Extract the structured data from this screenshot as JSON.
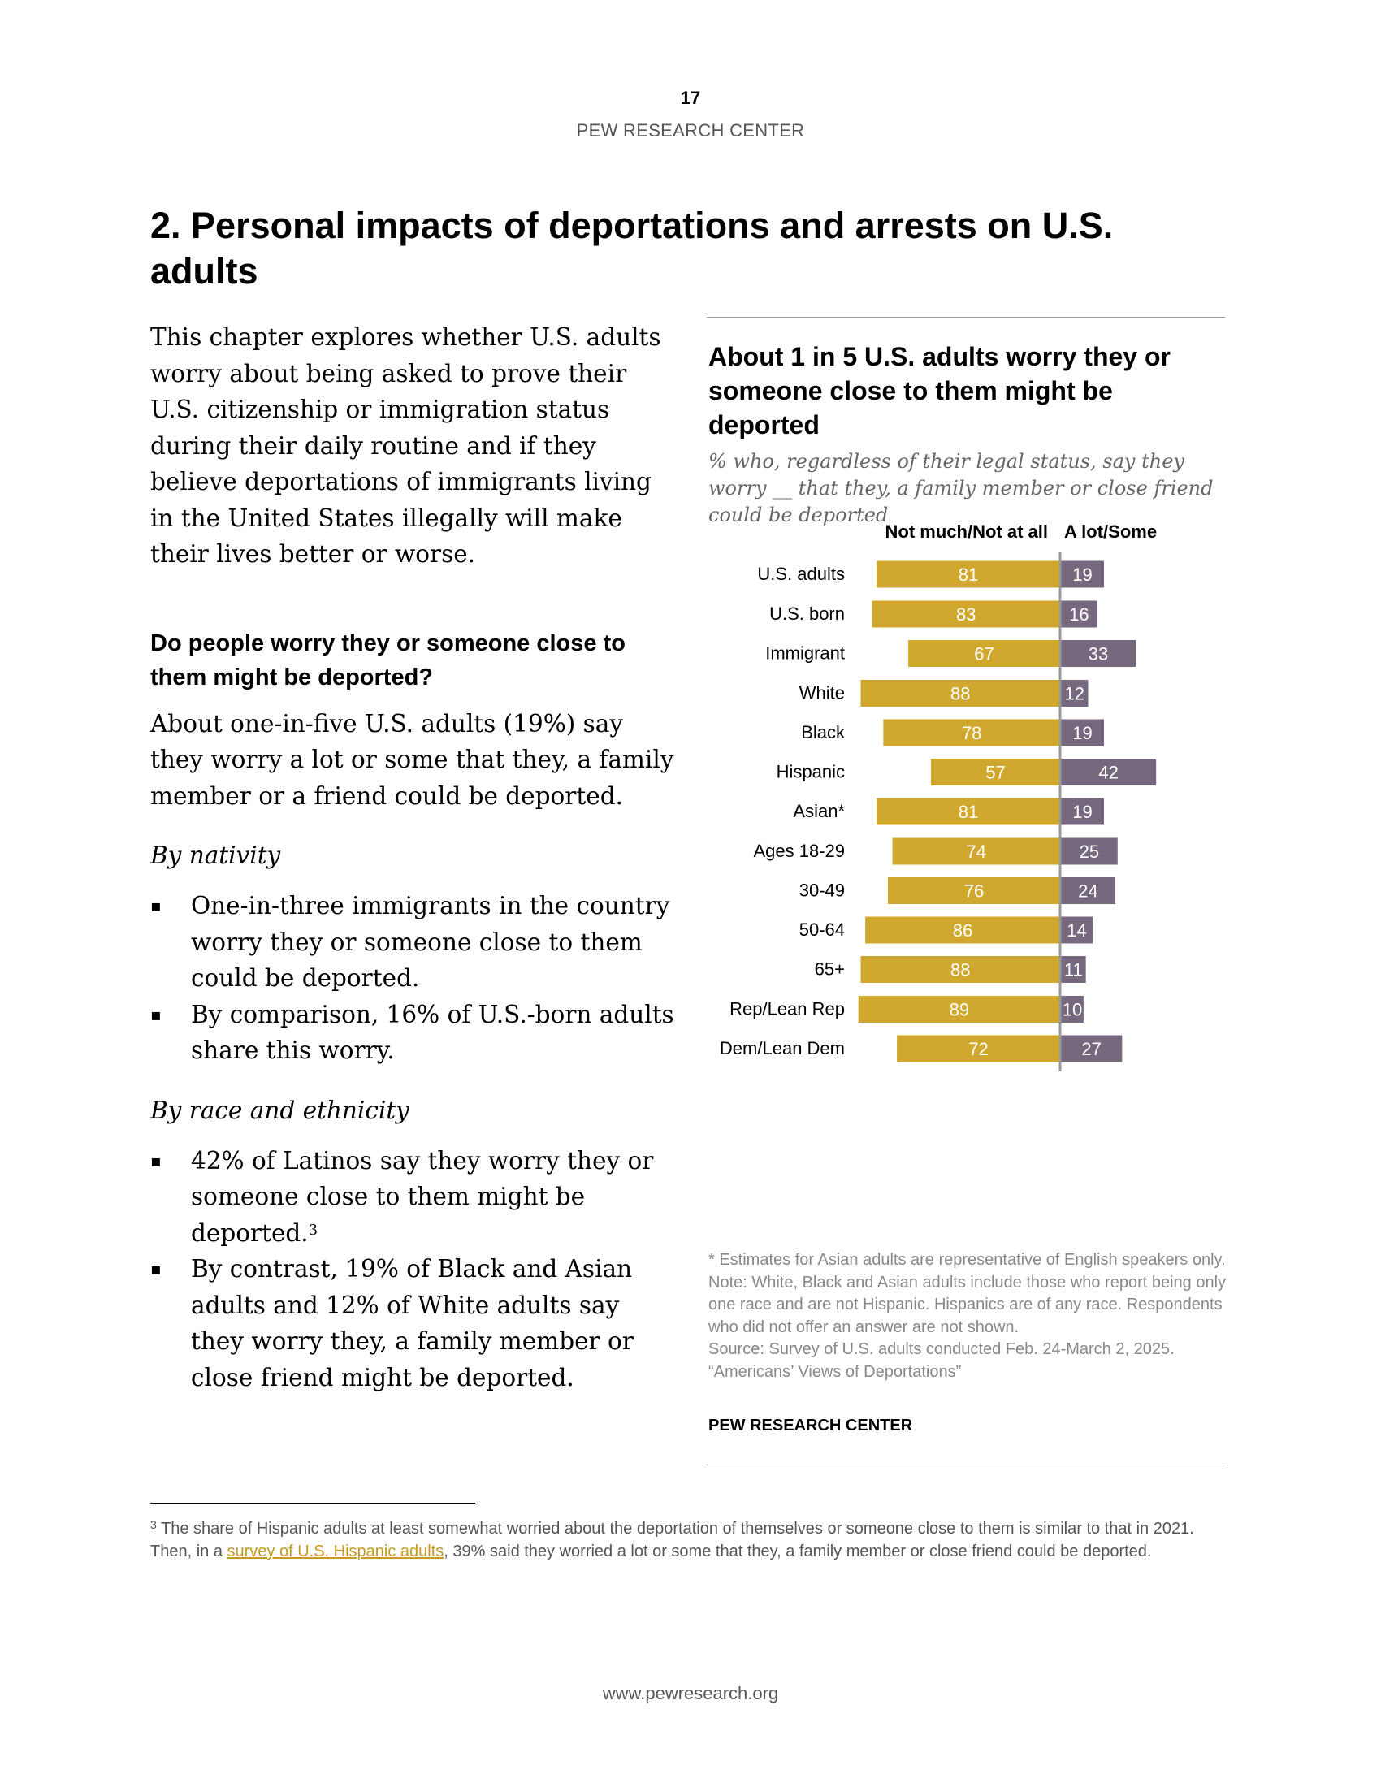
{
  "header": {
    "page_number": "17",
    "organization": "PEW RESEARCH CENTER"
  },
  "chapter": {
    "title": "2. Personal impacts of deportations and arrests on U.S. adults"
  },
  "left_column": {
    "intro": "This chapter explores whether U.S. adults worry about being asked to prove their U.S. citizenship or immigration status during their daily routine and if they believe deportations of immigrants living in the United States illegally will make their lives better or worse.",
    "section_heading": "Do people worry they or someone close to them might be deported?",
    "summary": "About one-in-five U.S. adults (19%) say they worry a lot or some that they, a family member or a friend could be deported.",
    "nativity": {
      "heading": "By nativity",
      "bullets": [
        "One-in-three immigrants in the country worry they or someone close to them could be deported.",
        "By comparison, 16% of U.S.-born adults share this worry."
      ]
    },
    "race": {
      "heading": "By race and ethnicity",
      "bullets": [
        "42% of Latinos say they worry they or someone close to them might be deported.",
        "By contrast, 19% of Black and Asian adults and 12% of White adults say they worry they, a family member or close friend might be deported."
      ],
      "footnote_ref": "3"
    },
    "bullet_marker": "▪"
  },
  "chart_data": {
    "type": "bar",
    "title": "About 1 in 5 U.S. adults worry they or someone close to them might be deported",
    "subtitle": "% who, regardless of their legal status, say they worry __ that they, a family member or close friend could be deported",
    "series": [
      {
        "name": "Not much/Not at all",
        "color": "#d1a82e",
        "values": [
          81,
          83,
          67,
          88,
          78,
          57,
          81,
          74,
          76,
          86,
          88,
          89,
          72
        ]
      },
      {
        "name": "A lot/Some",
        "color": "#76697f",
        "values": [
          19,
          16,
          33,
          12,
          19,
          42,
          19,
          25,
          24,
          14,
          11,
          10,
          27
        ]
      }
    ],
    "categories": [
      "U.S. adults",
      "U.S. born",
      "Immigrant",
      "White",
      "Black",
      "Hispanic",
      "Asian*",
      "Ages 18-29",
      "30-49",
      "50-64",
      "65+",
      "Rep/Lean Rep",
      "Dem/Lean Dem"
    ],
    "groups": [
      [
        0
      ],
      [
        1,
        2
      ],
      [
        3,
        4,
        5,
        6
      ],
      [
        7,
        8,
        9,
        10
      ],
      [
        11,
        12
      ]
    ],
    "layout": "diverging horizontal bars",
    "notes": [
      "* Estimates for Asian adults are representative of English speakers only.",
      "Note: White, Black and Asian adults include those who report being only one race and are not Hispanic. Hispanics are of any race. Respondents who did not offer an answer are not shown.",
      "Source: Survey of U.S. adults conducted Feb. 24-March 2, 2025.",
      "“Americans’ Views of Deportations”"
    ],
    "source_org": "PEW RESEARCH CENTER"
  },
  "footnote": {
    "marker": "3",
    "before_link": " The share of Hispanic adults at least somewhat worried about the deportation of themselves or someone close to them is similar to that in 2021. Then, in a ",
    "link_text": "survey of U.S. Hispanic adults",
    "after_link": ", 39% said they worried a lot or some that they, a family member or close friend could be deported."
  },
  "footer": {
    "url": "www.pewresearch.org"
  }
}
